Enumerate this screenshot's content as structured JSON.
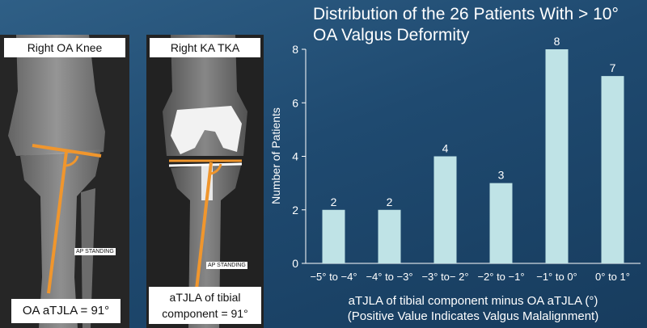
{
  "panels": {
    "left": {
      "title": "Right OA Knee",
      "caption": "OA aTJLA = 91°",
      "marker": "AP STANDING"
    },
    "right": {
      "title": "Right KA TKA",
      "caption_line1": "aTJLA of tibial",
      "caption_line2": "component = 91°",
      "marker": "AP STANDING"
    }
  },
  "colors": {
    "bar": "#bfe3e6",
    "annotation": "#f0962d",
    "text": "#ffffff"
  },
  "chart_data": {
    "type": "bar",
    "title_line1": "Distribution of the 26 Patients With > 10°",
    "title_line2": "OA Valgus Deformity",
    "categories": [
      "−5° to −4°",
      "−4° to −3°",
      "−3° to− 2°",
      "−2° to −1°",
      "−1° to 0°",
      "0° to 1°"
    ],
    "values": [
      2,
      2,
      4,
      3,
      8,
      7
    ],
    "xlabel_line1": "aTJLA of tibial component minus OA aTJLA (°)",
    "xlabel_line2": "(Positive Value Indicates Valgus Malalignment)",
    "ylabel": "Number of Patients",
    "ylim": [
      0,
      8
    ],
    "yticks": [
      0,
      2,
      4,
      6,
      8
    ],
    "grid": false
  }
}
